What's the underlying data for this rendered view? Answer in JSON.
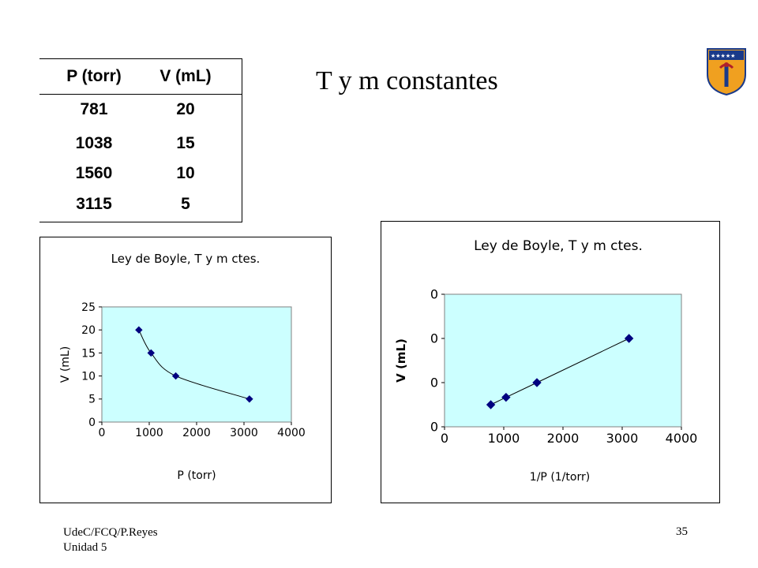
{
  "slide": {
    "title": "T y m constantes",
    "footer_line1": "UdeC/FCQ/P.Reyes",
    "footer_line2": "Unidad 5",
    "page_number": "35"
  },
  "table": {
    "headers": [
      "P (torr)",
      "V (mL)"
    ],
    "rows": [
      [
        "781",
        "20"
      ],
      [
        "1038",
        "15"
      ],
      [
        "1560",
        "10"
      ],
      [
        "3115",
        "5"
      ]
    ]
  },
  "colors": {
    "plot_bg": "#ccffff",
    "marker": "#000080",
    "line": "#000000",
    "crest_blue": "#1a3a8a",
    "crest_orange": "#f0a020"
  },
  "chart_data": [
    {
      "type": "line",
      "title": "Ley de Boyle, T y m ctes.",
      "xlabel": "P (torr)",
      "ylabel": "V (mL)",
      "x": [
        781,
        1038,
        1560,
        3115
      ],
      "y": [
        20,
        15,
        10,
        5
      ],
      "xlim": [
        0,
        4000
      ],
      "ylim": [
        0,
        25
      ],
      "xticks": [
        "0",
        "1000",
        "2000",
        "3000",
        "4000"
      ],
      "yticks": [
        "0",
        "5",
        "10",
        "15",
        "20",
        "25"
      ],
      "grid": false,
      "smooth": true
    },
    {
      "type": "line",
      "title": "Ley de Boyle, T y m ctes.",
      "xlabel": "1/P   (1/torr)",
      "ylabel": "V (mL)",
      "x": [
        781,
        1038,
        1560,
        3115
      ],
      "y": [
        0.05,
        0.0667,
        0.1,
        0.2
      ],
      "xlim": [
        0,
        4000
      ],
      "ylim": [
        0,
        0.3
      ],
      "xticks": [
        "0",
        "1000",
        "2000",
        "3000",
        "4000"
      ],
      "yticks": [
        "0",
        "0",
        "0",
        "0"
      ],
      "grid": false,
      "smooth": false
    }
  ]
}
